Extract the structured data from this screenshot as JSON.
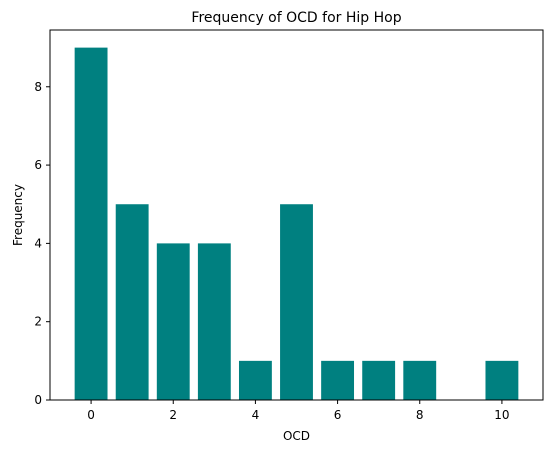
{
  "chart_data": {
    "type": "bar",
    "title": "Frequency of OCD for Hip Hop",
    "xlabel": "OCD",
    "ylabel": "Frequency",
    "x": [
      0,
      1,
      2,
      3,
      4,
      5,
      6,
      7,
      8,
      10
    ],
    "values": [
      9,
      5,
      4,
      4,
      1,
      5,
      1,
      1,
      1,
      1
    ],
    "xlim": [
      -1,
      11
    ],
    "ylim": [
      0,
      9.45
    ],
    "xticks": [
      0,
      2,
      4,
      6,
      8,
      10
    ],
    "yticks": [
      0,
      2,
      4,
      6,
      8
    ],
    "bar_color": "#008080",
    "grid": false,
    "legend": "none"
  }
}
